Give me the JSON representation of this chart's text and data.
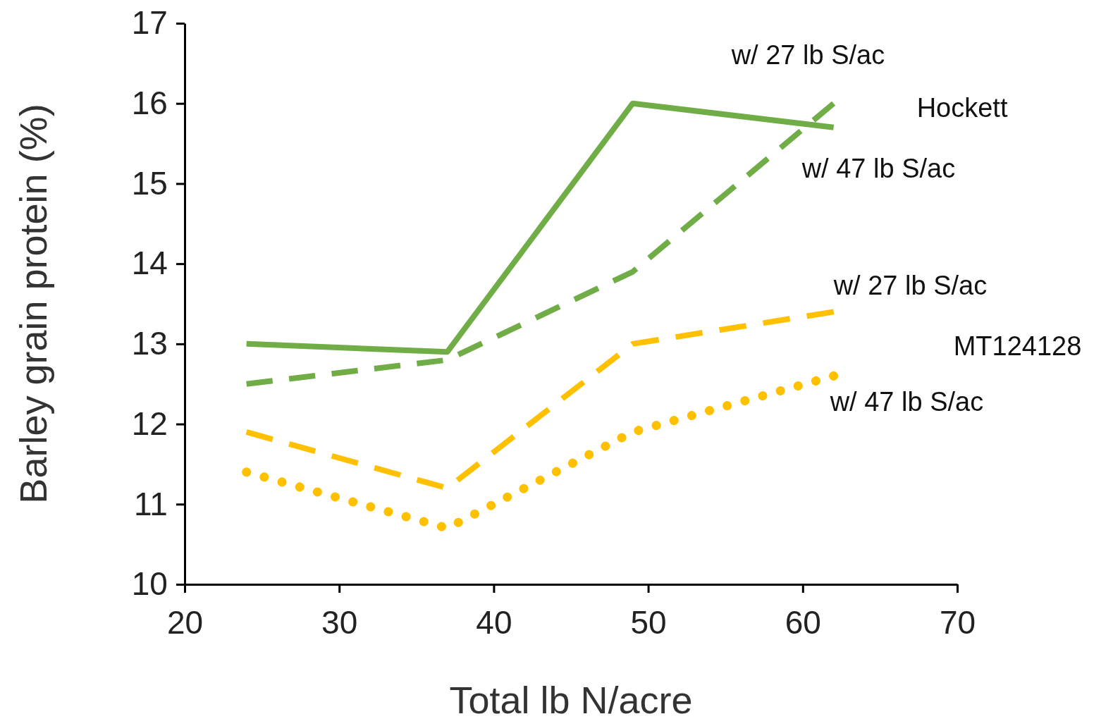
{
  "chart_data": {
    "type": "line",
    "xlabel": "Total lb N/acre",
    "ylabel": "Barley grain protein (%)",
    "x": [
      24,
      37,
      49,
      62
    ],
    "series": [
      {
        "name": "w/ 27 lb S/ac",
        "color": "#70ad47",
        "line_style": "solid",
        "values": [
          13.0,
          12.9,
          16.0,
          15.7
        ]
      },
      {
        "name": "w/ 47 lb S/ac",
        "color": "#70ad47",
        "line_style": "dashed",
        "values": [
          12.5,
          12.8,
          13.9,
          16.0
        ]
      },
      {
        "name": "w/ 27 lb S/ac",
        "color": "#ffc000",
        "line_style": "dashed",
        "values": [
          11.9,
          11.2,
          13.0,
          13.4
        ]
      },
      {
        "name": "w/ 47 lb S/ac",
        "color": "#ffc000",
        "line_style": "dotted",
        "values": [
          11.4,
          10.7,
          11.9,
          12.6
        ]
      }
    ],
    "xlim": [
      20,
      70
    ],
    "xticks": [
      20,
      30,
      40,
      50,
      60,
      70
    ],
    "ylim": [
      10,
      17
    ],
    "yticks": [
      10,
      11,
      12,
      13,
      14,
      15,
      16,
      17
    ],
    "grid": false,
    "marker": "none",
    "annotations": [
      "Hockett",
      "MT124128"
    ]
  }
}
